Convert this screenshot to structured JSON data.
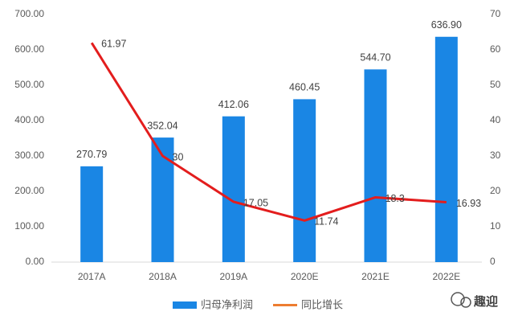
{
  "chart_data": {
    "type": "bar+line",
    "categories": [
      "2017A",
      "2018A",
      "2019A",
      "2020E",
      "2021E",
      "2022E"
    ],
    "series": [
      {
        "name": "归母净利润",
        "type": "bar",
        "color": "#1a86e4",
        "values": [
          270.79,
          352.04,
          412.06,
          460.45,
          544.7,
          636.9
        ],
        "value_labels": [
          "270.79",
          "352.04",
          "412.06",
          "460.45",
          "544.70",
          "636.90"
        ]
      },
      {
        "name": "同比增长",
        "type": "line",
        "axis": "y2",
        "color": "#e31d1d",
        "legend_color": "#ed7d31",
        "values": [
          61.97,
          30,
          17.05,
          11.74,
          18.3,
          16.93
        ]
      }
    ],
    "ylim": [
      0,
      700
    ],
    "yticks": [
      {
        "value": 0,
        "label": "0.00"
      },
      {
        "value": 100,
        "label": "100.00"
      },
      {
        "value": 200,
        "label": "200.00"
      },
      {
        "value": 300,
        "label": "300.00"
      },
      {
        "value": 400,
        "label": "400.00"
      },
      {
        "value": 500,
        "label": "500.00"
      },
      {
        "value": 600,
        "label": "600.00"
      },
      {
        "value": 700,
        "label": "700.00"
      }
    ],
    "y2lim": [
      0,
      70
    ],
    "y2ticks": [
      0,
      10,
      20,
      30,
      40,
      50,
      60,
      70
    ],
    "grid": false,
    "legend": "bottom",
    "watermark": "趣迎"
  }
}
